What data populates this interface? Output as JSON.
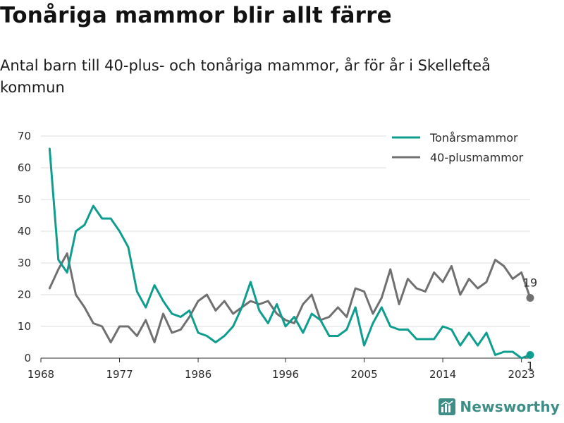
{
  "brand": {
    "name": "Newsworthy",
    "color": "#3e8e88"
  },
  "chart_data": {
    "type": "line",
    "title": "Tonåriga mammor blir allt färre",
    "subtitle": "Antal barn till 40-plus- och tonåriga mammor, år för år i Skellefteå kommun",
    "xlabel": "",
    "ylabel": "",
    "xlim": [
      1968,
      2024
    ],
    "ylim": [
      0,
      70
    ],
    "yticks": [
      0,
      10,
      20,
      30,
      40,
      50,
      60,
      70
    ],
    "xticks": [
      1968,
      1977,
      1986,
      1996,
      2005,
      2014,
      2023
    ],
    "xtick_labels": [
      "1968",
      "1977",
      "1986",
      "1996",
      "2005",
      "2014",
      "2023"
    ],
    "grid": "horizontal",
    "legend_position": "top-right",
    "x": [
      1969,
      1970,
      1971,
      1972,
      1973,
      1974,
      1975,
      1976,
      1977,
      1978,
      1979,
      1980,
      1981,
      1982,
      1983,
      1984,
      1985,
      1986,
      1987,
      1988,
      1989,
      1990,
      1991,
      1992,
      1993,
      1994,
      1995,
      1996,
      1997,
      1998,
      1999,
      2000,
      2001,
      2002,
      2003,
      2004,
      2005,
      2006,
      2007,
      2008,
      2009,
      2010,
      2011,
      2012,
      2013,
      2014,
      2015,
      2016,
      2017,
      2018,
      2019,
      2020,
      2021,
      2022,
      2023,
      2024
    ],
    "series": [
      {
        "name": "Tonårsmammor",
        "color": "#0f9d90",
        "values": [
          66,
          31,
          27,
          40,
          42,
          48,
          44,
          44,
          40,
          35,
          21,
          16,
          23,
          18,
          14,
          13,
          15,
          8,
          7,
          5,
          7,
          10,
          16,
          24,
          15,
          11,
          17,
          10,
          13,
          8,
          14,
          12,
          7,
          7,
          9,
          16,
          4,
          11,
          16,
          10,
          9,
          9,
          6,
          6,
          6,
          10,
          9,
          4,
          8,
          4,
          8,
          1,
          2,
          2,
          0,
          1
        ],
        "end_label": "1"
      },
      {
        "name": "40-plusmammor",
        "color": "#707070",
        "values": [
          22,
          28,
          33,
          20,
          16,
          11,
          10,
          5,
          10,
          10,
          7,
          12,
          5,
          14,
          8,
          9,
          13,
          18,
          20,
          15,
          18,
          14,
          16,
          18,
          17,
          18,
          14,
          12,
          11,
          17,
          20,
          12,
          13,
          16,
          13,
          22,
          21,
          14,
          19,
          28,
          17,
          25,
          22,
          21,
          27,
          24,
          29,
          20,
          25,
          22,
          24,
          31,
          29,
          25,
          27,
          19
        ],
        "end_label": "19"
      }
    ]
  }
}
